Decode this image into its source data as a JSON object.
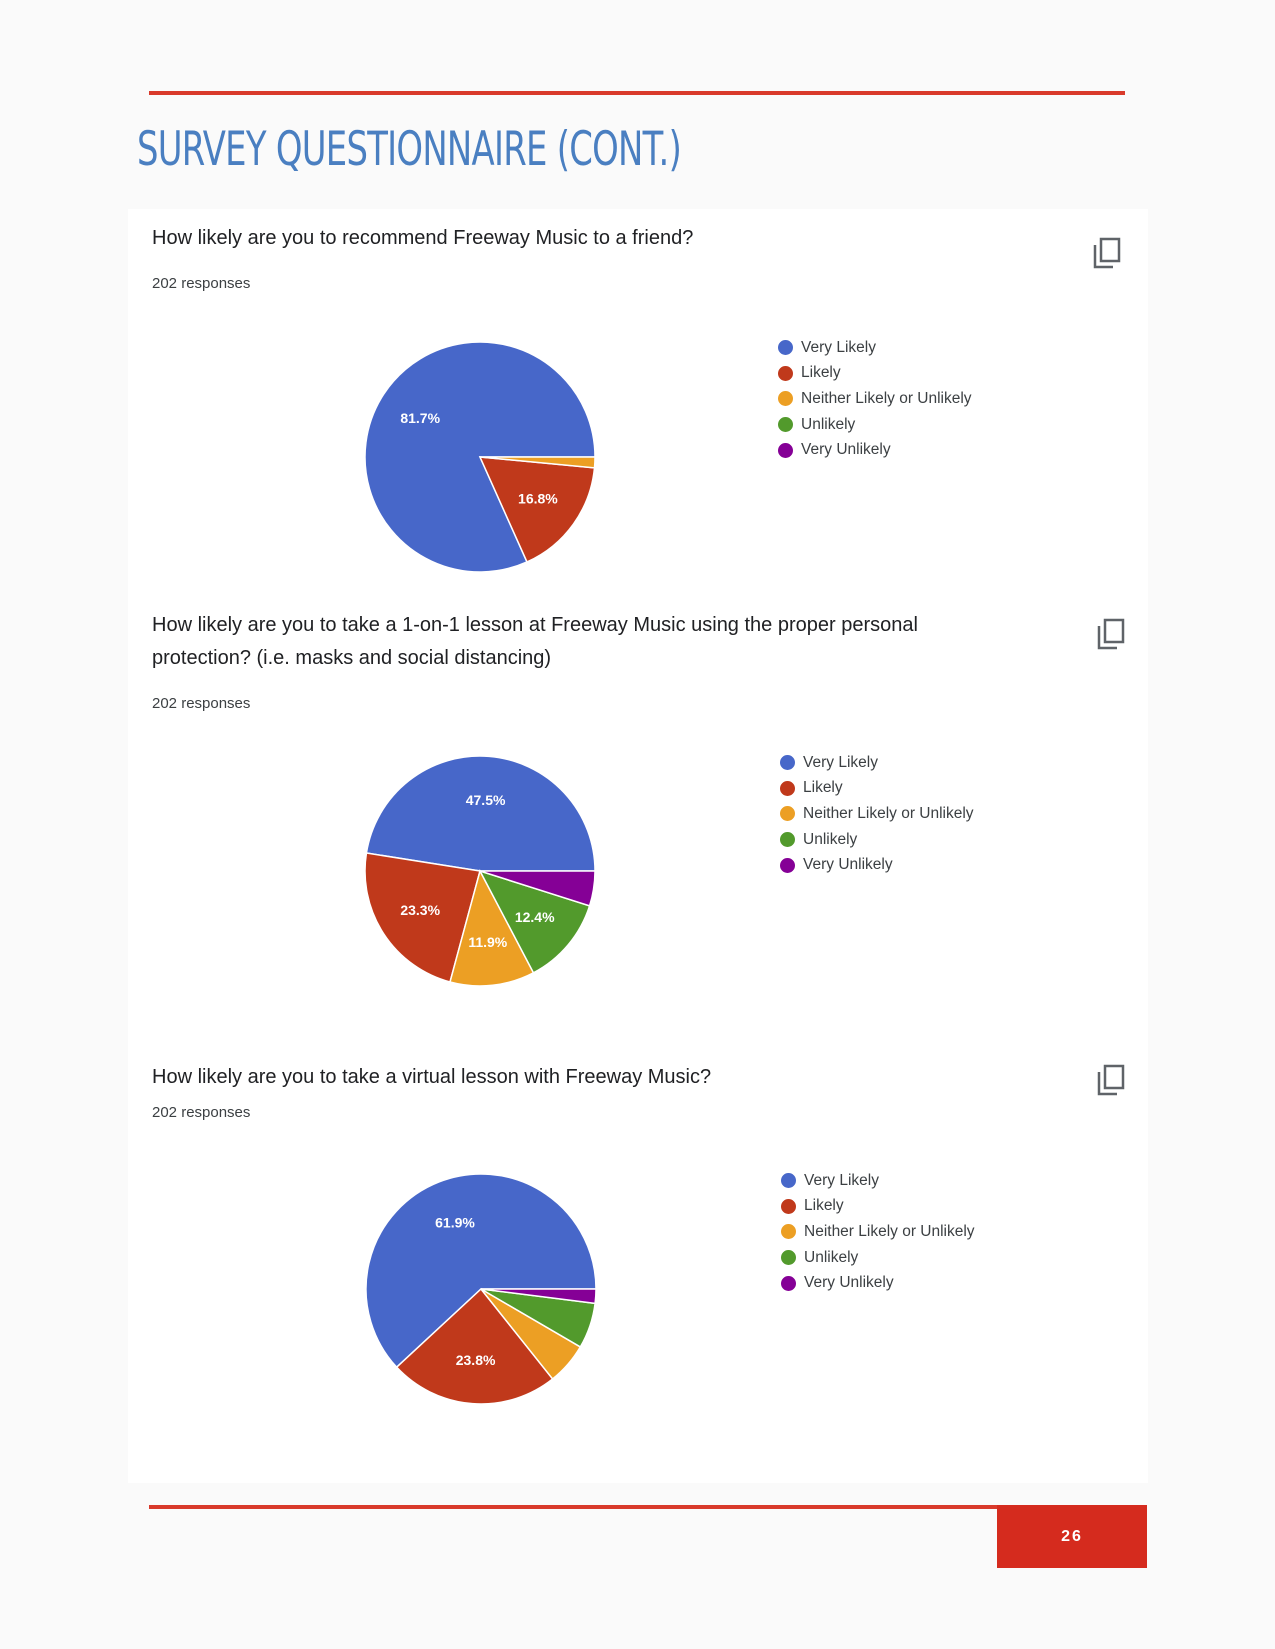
{
  "page": {
    "title": "SURVEY QUESTIONNAIRE (CONT.)",
    "page_number": "26"
  },
  "colors": {
    "accent_red": "#d93a2b",
    "title_blue": "#4a7fc1",
    "very_likely": "#4767c9",
    "likely": "#c0391b",
    "neither": "#ec9f24",
    "unlikely": "#529a2c",
    "very_unlikely": "#850096"
  },
  "icons": {
    "copy": "copy-icon"
  },
  "chart_data": [
    {
      "type": "pie",
      "title": "How likely are you to recommend Freeway Music to a friend?",
      "subtitle": "202 responses",
      "categories": [
        "Very Likely",
        "Likely",
        "Neither Likely or Unlikely",
        "Unlikely",
        "Very Unlikely"
      ],
      "values": [
        81.7,
        16.8,
        1.5,
        0,
        0
      ],
      "data_labels": [
        "81.7%",
        "16.8%",
        "",
        "",
        ""
      ],
      "legend_position": "right"
    },
    {
      "type": "pie",
      "title": "How likely are you to take a 1-on-1 lesson at Freeway Music using the proper personal protection? (i.e. masks and social distancing)",
      "subtitle": "202 responses",
      "categories": [
        "Very Likely",
        "Likely",
        "Neither Likely or Unlikely",
        "Unlikely",
        "Very Unlikely"
      ],
      "values": [
        47.5,
        23.3,
        11.9,
        12.4,
        4.9
      ],
      "data_labels": [
        "47.5%",
        "23.3%",
        "11.9%",
        "12.4%",
        ""
      ],
      "legend_position": "right"
    },
    {
      "type": "pie",
      "title": "How likely are you to take a virtual lesson with Freeway Music?",
      "subtitle": "202 responses",
      "categories": [
        "Very Likely",
        "Likely",
        "Neither Likely or Unlikely",
        "Unlikely",
        "Very Unlikely"
      ],
      "values": [
        61.9,
        23.8,
        5.9,
        6.4,
        2.0
      ],
      "data_labels": [
        "61.9%",
        "23.8%",
        "",
        "",
        ""
      ],
      "legend_position": "right"
    }
  ]
}
